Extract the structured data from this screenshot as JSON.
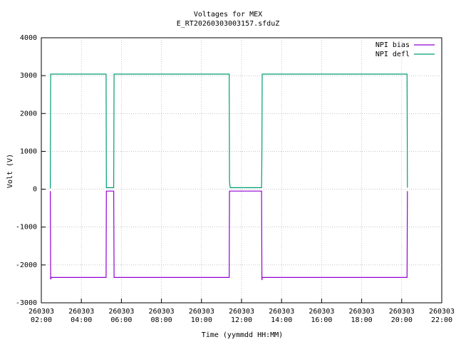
{
  "chart_data": {
    "type": "line",
    "title": "Voltages for MEX",
    "subtitle": "E_RT20260303003157.sfduZ",
    "x_label": "Time (yymmdd HH:MM)",
    "y_label": "Volt (V)",
    "x": [
      "260303 02:27",
      "260303 02:28",
      "260303 02:30",
      "260303 05:14",
      "260303 05:15",
      "260303 05:37",
      "260303 05:38",
      "260303 11:23",
      "260303 11:24",
      "260303 11:26",
      "260303 13:00",
      "260303 13:01",
      "260303 13:02",
      "260303 20:16",
      "260303 20:17"
    ],
    "series": [
      {
        "name": "NPI bias",
        "color": "#9400d3",
        "values": [
          -50,
          -2380,
          -2330,
          -2330,
          -50,
          -50,
          -2330,
          -2330,
          -50,
          -50,
          -50,
          -2400,
          -2330,
          -2330,
          -50
        ]
      },
      {
        "name": "NPI defl",
        "color": "#009e73",
        "values": [
          20,
          3040,
          3040,
          3040,
          40,
          40,
          3040,
          3040,
          200,
          40,
          40,
          1000,
          3040,
          3040,
          40
        ]
      }
    ],
    "xlim": [
      "260303 02:00",
      "260303 22:00"
    ],
    "xticks": [
      "260303\n02:00",
      "260303\n04:00",
      "260303\n06:00",
      "260303\n08:00",
      "260303\n10:00",
      "260303\n12:00",
      "260303\n14:00",
      "260303\n16:00",
      "260303\n18:00",
      "260303\n20:00",
      "260303\n22:00"
    ],
    "ylim": [
      -3000,
      4000
    ],
    "yticks": [
      -3000,
      -2000,
      -1000,
      0,
      1000,
      2000,
      3000,
      4000
    ],
    "grid": true,
    "legend": "top-right"
  }
}
